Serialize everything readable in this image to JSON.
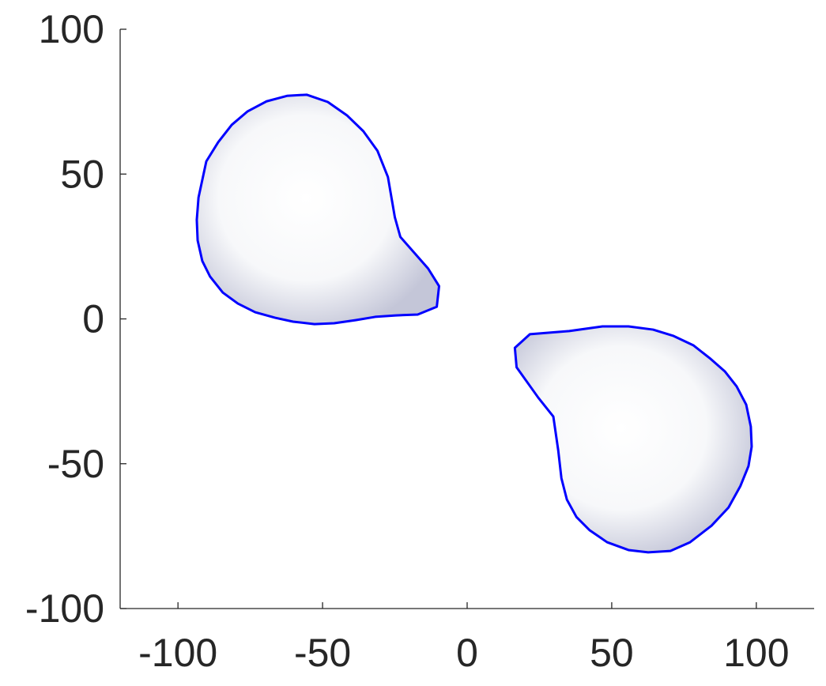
{
  "chart_data": {
    "type": "polygon",
    "xlim": [
      -120,
      120
    ],
    "ylim": [
      -100,
      100
    ],
    "xticks": [
      -100,
      -50,
      0,
      50,
      100
    ],
    "yticks": [
      -100,
      -50,
      0,
      50,
      100
    ],
    "series": [
      {
        "color": "#0000ff",
        "x": [
          -55.5,
          -48.2,
          -41.6,
          -35.9,
          -31.0,
          -27.4,
          -25.0,
          -23.1,
          -13.5,
          -9.7,
          -10.5,
          -17.1,
          -24.7,
          -31.8,
          -38.4,
          -46.0,
          -52.8,
          -60.2,
          -66.4,
          -73.3,
          -79.3,
          -84.5,
          -88.9,
          -91.6,
          -93.2,
          -93.5,
          -92.9,
          -90.2,
          -86.1,
          -81.4,
          -76.0,
          -69.4,
          -62.3
        ],
        "values": [
          77.4,
          74.9,
          70.3,
          64.8,
          58.0,
          49.0,
          35.1,
          28.3,
          17.4,
          11.3,
          4.2,
          1.5,
          1.2,
          0.7,
          -0.4,
          -1.5,
          -1.8,
          -0.95,
          0.4,
          2.3,
          5.3,
          9.1,
          14.6,
          20.0,
          27.1,
          34.2,
          41.9,
          54.4,
          61.0,
          67.0,
          71.6,
          75.1,
          77.0
        ]
      },
      {
        "color": "#0000ff",
        "x": [
          16.5,
          21.7,
          35.3,
          46.8,
          55.8,
          64.3,
          71.4,
          78.2,
          84.2,
          89.1,
          93.2,
          96.5,
          98.1,
          98.4,
          97.3,
          94.5,
          90.4,
          84.5,
          77.1,
          70.3,
          62.6,
          55.8,
          48.4,
          42.4,
          37.8,
          34.5,
          32.6,
          31.5,
          29.8,
          24.6,
          17.1
        ],
        "values": [
          -10.0,
          -5.3,
          -4.2,
          -2.6,
          -2.6,
          -3.7,
          -5.9,
          -9.1,
          -13.8,
          -18.1,
          -23.3,
          -29.6,
          -37.2,
          -44.1,
          -50.8,
          -57.7,
          -65.1,
          -71.4,
          -77.1,
          -80.1,
          -80.6,
          -79.8,
          -77.1,
          -73.0,
          -68.4,
          -62.4,
          -55.0,
          -45.4,
          -33.7,
          -27.2,
          -16.7
        ]
      }
    ]
  }
}
